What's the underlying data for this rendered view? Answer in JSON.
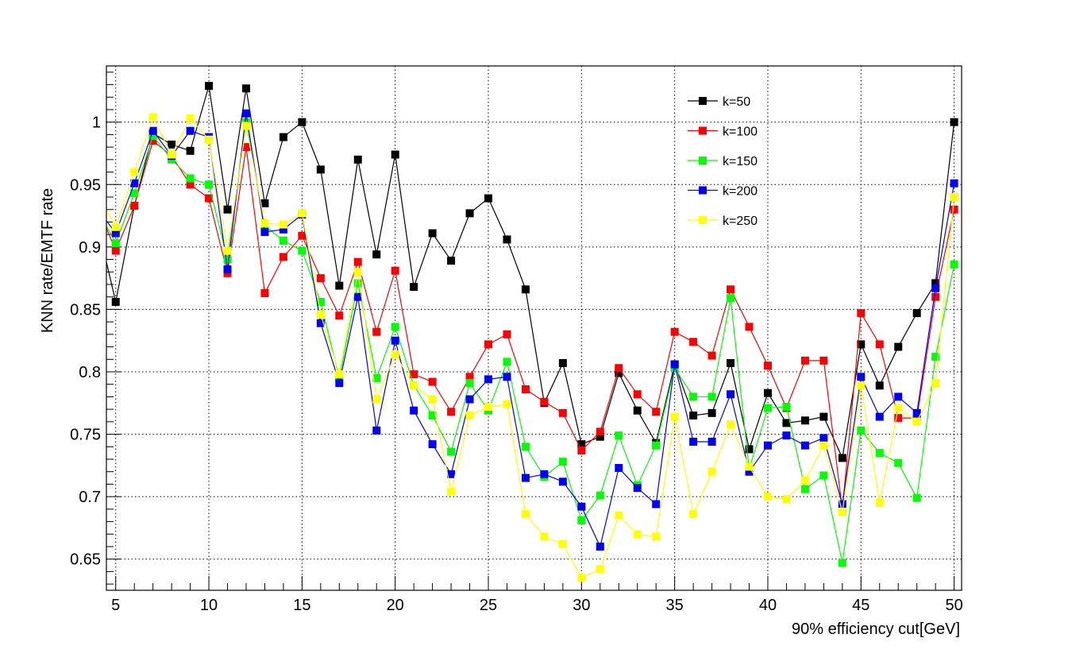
{
  "chart_data": {
    "type": "line",
    "title": "",
    "xlabel": "90% efficiency cut[GeV]",
    "ylabel": "KNN rate/EMTF rate",
    "xlim": [
      4.5,
      50.4
    ],
    "ylim": [
      0.625,
      1.045
    ],
    "x_ticks": [
      5,
      10,
      15,
      20,
      25,
      30,
      35,
      40,
      45,
      50
    ],
    "y_ticks": [
      0.65,
      0.7,
      0.75,
      0.8,
      0.85,
      0.9,
      0.95,
      1
    ],
    "y_tick_labels": [
      "0.65",
      "0.7",
      "0.75",
      "0.8",
      "0.85",
      "0.9",
      "0.95",
      "1"
    ],
    "grid": true,
    "legend_position": "top-right",
    "marker": "square",
    "x": [
      5,
      6,
      7,
      8,
      9,
      10,
      11,
      12,
      13,
      14,
      15,
      16,
      17,
      18,
      19,
      20,
      21,
      22,
      23,
      24,
      25,
      26,
      27,
      28,
      29,
      30,
      31,
      32,
      33,
      34,
      35,
      36,
      37,
      38,
      39,
      40,
      41,
      42,
      43,
      44,
      45,
      46,
      47,
      48,
      49,
      50
    ],
    "series": [
      {
        "name": "k=50",
        "color": "#000000",
        "start_y": 0.888,
        "values": [
          0.856,
          0.933,
          0.991,
          0.982,
          0.977,
          1.029,
          0.93,
          1.027,
          0.935,
          0.988,
          1.0,
          0.962,
          0.869,
          0.97,
          0.894,
          0.974,
          0.868,
          0.911,
          0.889,
          0.927,
          0.939,
          0.906,
          0.866,
          0.775,
          0.807,
          0.742,
          0.748,
          0.799,
          0.769,
          0.743,
          0.806,
          0.765,
          0.767,
          0.807,
          0.738,
          0.783,
          0.759,
          0.761,
          0.764,
          0.731,
          0.822,
          0.789,
          0.82,
          0.847,
          0.871,
          1.0
        ]
      },
      {
        "name": "k=100",
        "color": "#ff0000",
        "start_y": 0.915,
        "values": [
          0.897,
          0.933,
          0.985,
          0.973,
          0.95,
          0.939,
          0.879,
          0.98,
          0.863,
          0.892,
          0.909,
          0.875,
          0.845,
          0.888,
          0.832,
          0.881,
          0.798,
          0.792,
          0.768,
          0.796,
          0.822,
          0.83,
          0.786,
          0.776,
          0.767,
          0.737,
          0.752,
          0.803,
          0.782,
          0.768,
          0.832,
          0.824,
          0.813,
          0.866,
          0.836,
          0.805,
          0.771,
          0.809,
          0.809,
          0.69,
          0.847,
          0.822,
          0.763,
          0.763,
          0.86,
          0.93
        ]
      },
      {
        "name": "k=150",
        "color": "#00ff00",
        "start_y": 0.917,
        "values": [
          0.903,
          0.943,
          0.989,
          0.97,
          0.955,
          0.95,
          0.89,
          1.0,
          0.917,
          0.905,
          0.897,
          0.856,
          0.795,
          0.871,
          0.795,
          0.836,
          0.789,
          0.765,
          0.736,
          0.791,
          0.769,
          0.808,
          0.74,
          0.716,
          0.728,
          0.681,
          0.701,
          0.749,
          0.709,
          0.741,
          0.803,
          0.78,
          0.78,
          0.859,
          0.722,
          0.771,
          0.772,
          0.706,
          0.717,
          0.647,
          0.753,
          0.735,
          0.727,
          0.699,
          0.812,
          0.886
        ]
      },
      {
        "name": "k=200",
        "color": "#0000ff",
        "start_y": 0.921,
        "values": [
          0.911,
          0.951,
          0.993,
          0.973,
          0.993,
          0.988,
          0.882,
          1.007,
          0.912,
          0.914,
          0.926,
          0.839,
          0.791,
          0.86,
          0.753,
          0.825,
          0.769,
          0.742,
          0.718,
          0.778,
          0.794,
          0.796,
          0.715,
          0.718,
          0.712,
          0.692,
          0.66,
          0.723,
          0.707,
          0.694,
          0.806,
          0.744,
          0.744,
          0.782,
          0.72,
          0.741,
          0.749,
          0.741,
          0.747,
          0.694,
          0.796,
          0.764,
          0.78,
          0.767,
          0.867,
          0.951
        ]
      },
      {
        "name": "k=250",
        "color": "#ffff00",
        "start_y": 0.93,
        "values": [
          0.916,
          0.96,
          1.004,
          0.974,
          1.003,
          0.986,
          0.897,
          0.997,
          0.919,
          0.918,
          0.927,
          0.846,
          0.798,
          0.88,
          0.778,
          0.814,
          0.789,
          0.778,
          0.704,
          0.765,
          0.772,
          0.774,
          0.686,
          0.668,
          0.662,
          0.635,
          0.642,
          0.685,
          0.67,
          0.668,
          0.764,
          0.686,
          0.72,
          0.758,
          0.724,
          0.7,
          0.698,
          0.713,
          0.741,
          0.688,
          0.789,
          0.695,
          0.771,
          0.76,
          0.791,
          0.94
        ]
      }
    ]
  }
}
